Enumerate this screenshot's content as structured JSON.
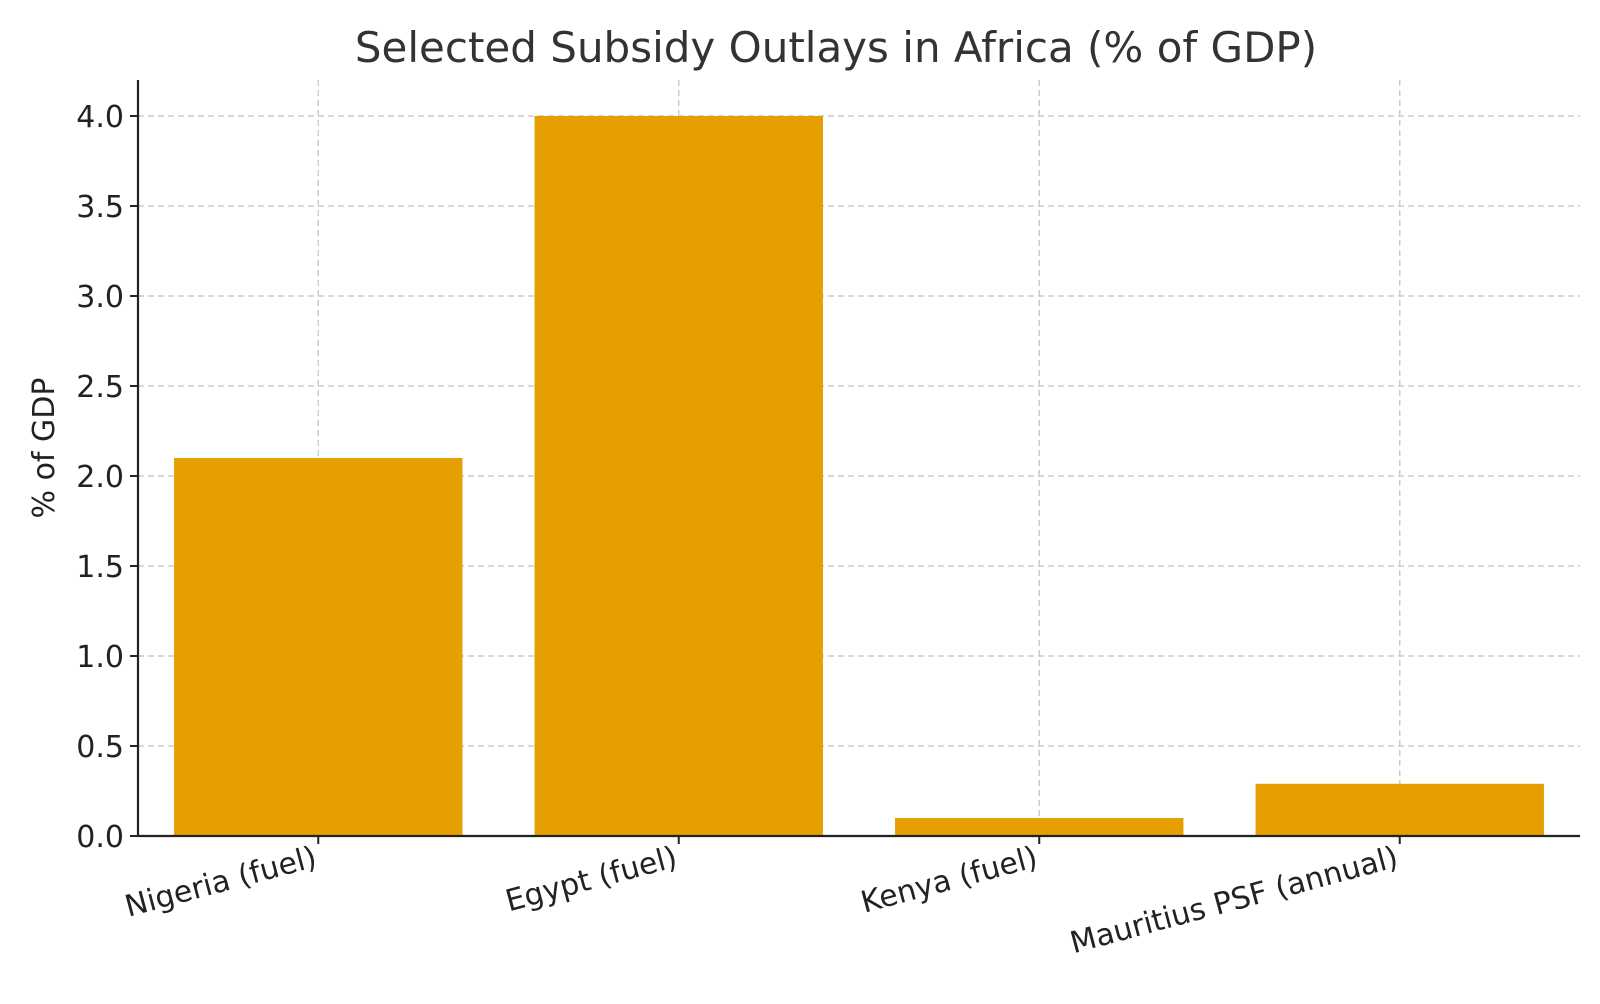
{
  "chart_data": {
    "type": "bar",
    "title": "Selected Subsidy Outlays in Africa (% of GDP)",
    "xlabel": "",
    "ylabel": "% of GDP",
    "categories": [
      "Nigeria (fuel)",
      "Egypt (fuel)",
      "Kenya (fuel)",
      "Mauritius PSF (annual)"
    ],
    "values": [
      2.1,
      4.0,
      0.1,
      0.29
    ],
    "ylim": [
      0,
      4.2
    ],
    "yticks": [
      "0.0",
      "0.5",
      "1.0",
      "1.5",
      "2.0",
      "2.5",
      "3.0",
      "3.5",
      "4.0"
    ],
    "bar_color": "#E69F00",
    "grid": true,
    "grid_style": "dashed",
    "tick_label_rotation": "slanted"
  }
}
